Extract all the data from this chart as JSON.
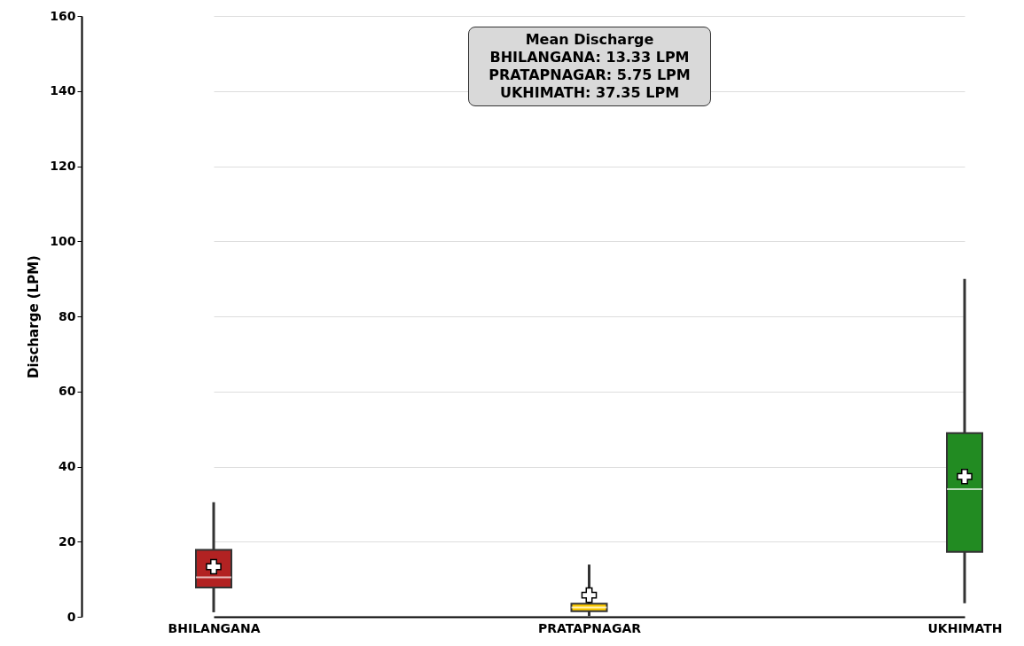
{
  "chart_data": {
    "type": "box",
    "ylabel": "Discharge (LPM)",
    "categories": [
      "BHILANGANA",
      "PRATAPNAGAR",
      "UKHIMATH"
    ],
    "colors": [
      "#b22222",
      "#ffcc00",
      "#228b22"
    ],
    "boxes": [
      {
        "low": 1.2,
        "q1": 7.8,
        "median": 10.5,
        "q3": 17.8,
        "high": 30.5,
        "mean": 13.33
      },
      {
        "low": 0.2,
        "q1": 1.5,
        "median": 2.5,
        "q3": 3.5,
        "high": 13.9,
        "mean": 5.75
      },
      {
        "low": 3.6,
        "q1": 17.3,
        "median": 34,
        "q3": 48.9,
        "high": 90,
        "mean": 37.35
      }
    ],
    "ylim": [
      0,
      160
    ],
    "yticks": [
      0,
      20,
      40,
      60,
      80,
      100,
      120,
      140,
      160
    ],
    "grid": "y",
    "annotations": [
      "Mean Discharge\nBHILANGANA: 13.33 LPM\nPRATAPNAGAR: 5.75 LPM\nUKHIMATH: 37.35 LPM"
    ]
  }
}
